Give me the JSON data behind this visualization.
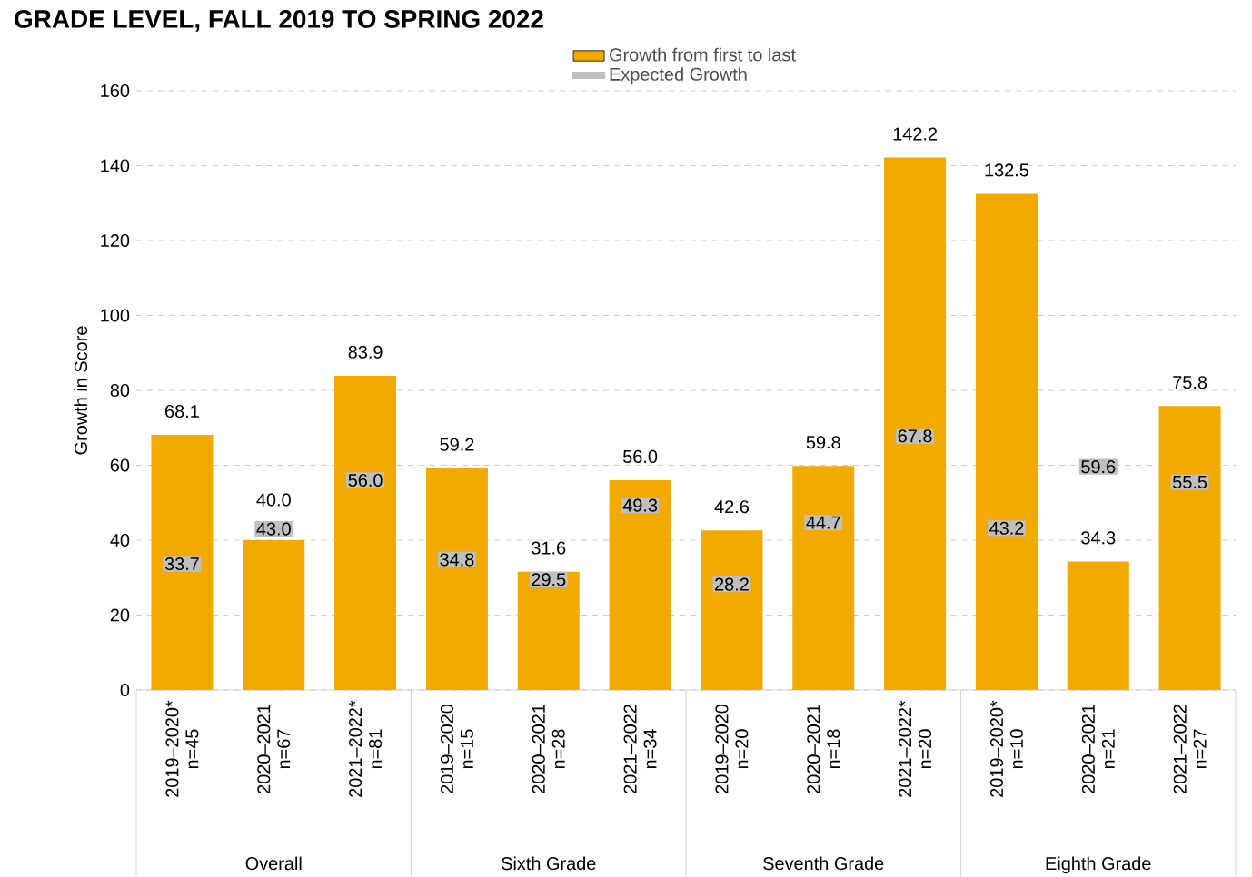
{
  "chart_data": {
    "type": "bar",
    "title": "GRADE LEVEL, FALL 2019 TO SPRING 2022",
    "ylabel": "Growth in Score",
    "categories": [
      "2019–2020* n=45",
      "2020–2021 n=67",
      "2021–2022* n=81",
      "2019–2020 n=15",
      "2020–2021 n=28",
      "2021–2022 n=34",
      "2019–2020 n=20",
      "2020–2021 n=18",
      "2021–2022* n=20",
      "2019–2020* n=10",
      "2020–2021 n=21",
      "2021–2022 n=27"
    ],
    "series": [
      {
        "name": "Growth from first to last",
        "color": "#f2a900",
        "values": [
          68.1,
          40.0,
          83.9,
          59.2,
          31.6,
          56.0,
          42.6,
          59.8,
          142.2,
          132.5,
          34.3,
          75.8
        ],
        "value_labels": [
          "68.1",
          "40.0",
          "83.9",
          "59.2",
          "31.6",
          "56.0",
          "42.6",
          "59.8",
          "142.2",
          "132.5",
          "34.3",
          "75.8"
        ]
      },
      {
        "name": "Expected Growth",
        "type": "scatter",
        "color": "#bfbfbf",
        "values": [
          33.7,
          43.0,
          56.0,
          34.8,
          29.5,
          49.3,
          28.2,
          44.7,
          67.8,
          43.2,
          59.6,
          55.5
        ],
        "value_labels": [
          "33.7",
          "43.0",
          "56.0",
          "34.8",
          "29.5",
          "49.3",
          "28.2",
          "44.7",
          "67.8",
          "43.2",
          "59.6",
          "55.5"
        ]
      }
    ],
    "annotations": [
      "Overall",
      "Sixth Grade",
      "Seventh Grade",
      "Eighth Grade"
    ],
    "ylim": [
      0,
      160
    ],
    "yticks": [
      0,
      20,
      40,
      60,
      80,
      100,
      120,
      140,
      160
    ],
    "grid": "y",
    "legend": "top"
  }
}
